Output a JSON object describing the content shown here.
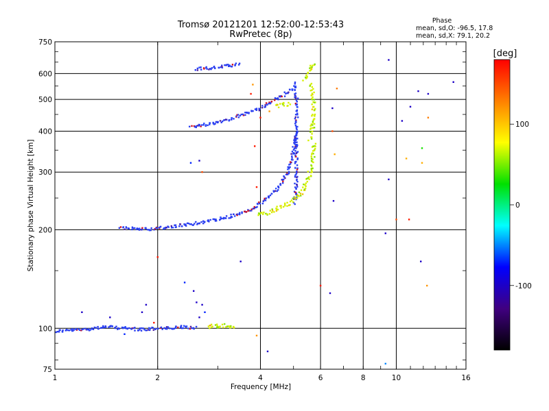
{
  "chart_data": {
    "type": "scatter",
    "title": "Tromsø 20121201 12:52:00-12:53:43",
    "subtitle": "RwPretec (8p)",
    "xlabel": "Frequency [MHz]",
    "ylabel": "Stationary phase Virtual Height [km]",
    "x_scale": "log",
    "y_scale": "log",
    "xlim": [
      1,
      16
    ],
    "ylim": [
      75,
      750
    ],
    "x_ticks": [
      1,
      2,
      4,
      6,
      8,
      10,
      16
    ],
    "y_ticks": [
      75,
      100,
      200,
      300,
      400,
      500,
      600,
      750
    ],
    "grid": true,
    "stats": {
      "heading": "Phase",
      "line_o": "mean, sd,O: -96.5, 17.8",
      "line_x": "mean, sd,X:  79.1, 20.2"
    },
    "colorbar": {
      "label": "[deg]",
      "range": [
        -180,
        180
      ],
      "ticks": [
        100,
        0,
        -100
      ],
      "colors": [
        "#ff0000",
        "#ff8000",
        "#ffff00",
        "#00e000",
        "#00ffff",
        "#0000ff",
        "#400080",
        "#000000"
      ]
    },
    "series_o_color": "#2a3ef0",
    "series_x_color": "#d6f000",
    "traces": [
      {
        "kind": "o",
        "f": [
          1.0,
          1.2,
          1.4,
          1.6,
          1.8,
          2.0,
          2.2,
          2.4,
          2.6
        ],
        "h": [
          98,
          99,
          101,
          100,
          99,
          100,
          100,
          101,
          100
        ]
      },
      {
        "kind": "o",
        "f": [
          1.55,
          1.7,
          1.9,
          2.1,
          2.4,
          2.8,
          3.2,
          3.5,
          3.8,
          4.0,
          4.3,
          4.6,
          4.8,
          5.0,
          5.1
        ],
        "h": [
          202,
          202,
          201,
          203,
          207,
          212,
          218,
          224,
          232,
          240,
          255,
          275,
          300,
          345,
          400
        ]
      },
      {
        "kind": "o",
        "f": [
          2.5,
          2.8,
          3.1,
          3.4,
          3.7,
          4.0,
          4.3,
          4.6,
          4.8,
          5.0
        ],
        "h": [
          412,
          420,
          430,
          442,
          455,
          470,
          490,
          510,
          525,
          545
        ]
      },
      {
        "kind": "o",
        "f": [
          5.05,
          5.1,
          5.1,
          5.05
        ],
        "h": [
          560,
          500,
          300,
          240
        ]
      },
      {
        "kind": "o",
        "f": [
          2.6,
          2.9,
          3.2,
          3.5
        ],
        "h": [
          618,
          625,
          632,
          642
        ]
      },
      {
        "kind": "x",
        "f": [
          3.95,
          4.2,
          4.5,
          4.8,
          5.1,
          5.3,
          5.5,
          5.6,
          5.7,
          5.75
        ],
        "h": [
          222,
          226,
          232,
          240,
          250,
          262,
          280,
          300,
          330,
          370
        ]
      },
      {
        "kind": "x",
        "f": [
          5.6,
          5.7,
          5.75,
          5.7,
          5.6
        ],
        "h": [
          380,
          420,
          470,
          520,
          560
        ]
      },
      {
        "kind": "x",
        "f": [
          5.4,
          5.5,
          5.65,
          5.75
        ],
        "h": [
          575,
          600,
          630,
          650
        ]
      },
      {
        "kind": "x",
        "f": [
          4.4,
          4.6,
          4.9
        ],
        "h": [
          475,
          480,
          485
        ]
      },
      {
        "kind": "x",
        "f": [
          2.8,
          3.0,
          3.2,
          3.4
        ],
        "h": [
          101,
          102,
          102,
          101
        ]
      }
    ],
    "scatter_points": [
      {
        "f": 9.5,
        "h": 660,
        "phase": -100
      },
      {
        "f": 11.6,
        "h": 530,
        "phase": -100
      },
      {
        "f": 14.7,
        "h": 565,
        "phase": -100
      },
      {
        "f": 12.4,
        "h": 520,
        "phase": -100
      },
      {
        "f": 11.0,
        "h": 475,
        "phase": -100
      },
      {
        "f": 10.4,
        "h": 430,
        "phase": -100
      },
      {
        "f": 12.4,
        "h": 440,
        "phase": 130
      },
      {
        "f": 11.9,
        "h": 355,
        "phase": 30
      },
      {
        "f": 11.9,
        "h": 320,
        "phase": 110
      },
      {
        "f": 10.7,
        "h": 330,
        "phase": 110
      },
      {
        "f": 9.5,
        "h": 285,
        "phase": -100
      },
      {
        "f": 10.0,
        "h": 215,
        "phase": 150
      },
      {
        "f": 10.9,
        "h": 215,
        "phase": 170
      },
      {
        "f": 9.3,
        "h": 195,
        "phase": -100
      },
      {
        "f": 11.8,
        "h": 160,
        "phase": -100
      },
      {
        "f": 12.3,
        "h": 135,
        "phase": 120
      },
      {
        "f": 9.3,
        "h": 78,
        "phase": -50
      },
      {
        "f": 6.55,
        "h": 245,
        "phase": -100
      },
      {
        "f": 6.6,
        "h": 340,
        "phase": 110
      },
      {
        "f": 6.5,
        "h": 400,
        "phase": 150
      },
      {
        "f": 6.7,
        "h": 540,
        "phase": 130
      },
      {
        "f": 6.5,
        "h": 470,
        "phase": -100
      },
      {
        "f": 6.4,
        "h": 128,
        "phase": -100
      },
      {
        "f": 6.0,
        "h": 135,
        "phase": 170
      },
      {
        "f": 4.2,
        "h": 85,
        "phase": -100
      },
      {
        "f": 3.9,
        "h": 95,
        "phase": 120
      },
      {
        "f": 3.5,
        "h": 160,
        "phase": -100
      },
      {
        "f": 2.4,
        "h": 138,
        "phase": -70
      },
      {
        "f": 2.0,
        "h": 165,
        "phase": 170
      },
      {
        "f": 2.5,
        "h": 320,
        "phase": -70
      },
      {
        "f": 2.65,
        "h": 325,
        "phase": -100
      },
      {
        "f": 2.7,
        "h": 300,
        "phase": 150
      },
      {
        "f": 3.85,
        "h": 360,
        "phase": 170
      },
      {
        "f": 3.9,
        "h": 270,
        "phase": 170
      },
      {
        "f": 3.8,
        "h": 555,
        "phase": 120
      },
      {
        "f": 3.75,
        "h": 520,
        "phase": 170
      },
      {
        "f": 4.0,
        "h": 440,
        "phase": 170
      },
      {
        "f": 4.25,
        "h": 460,
        "phase": 120
      },
      {
        "f": 2.55,
        "h": 130,
        "phase": -100
      },
      {
        "f": 2.6,
        "h": 120,
        "phase": -100
      },
      {
        "f": 2.7,
        "h": 118,
        "phase": -100
      },
      {
        "f": 2.65,
        "h": 108,
        "phase": -100
      },
      {
        "f": 2.75,
        "h": 112,
        "phase": -70
      },
      {
        "f": 2.85,
        "h": 102,
        "phase": 120
      },
      {
        "f": 1.2,
        "h": 112,
        "phase": -100
      },
      {
        "f": 1.45,
        "h": 108,
        "phase": -100
      },
      {
        "f": 1.8,
        "h": 112,
        "phase": -100
      },
      {
        "f": 1.95,
        "h": 104,
        "phase": 170
      },
      {
        "f": 1.6,
        "h": 96,
        "phase": -70
      },
      {
        "f": 1.85,
        "h": 118,
        "phase": -100
      }
    ]
  }
}
